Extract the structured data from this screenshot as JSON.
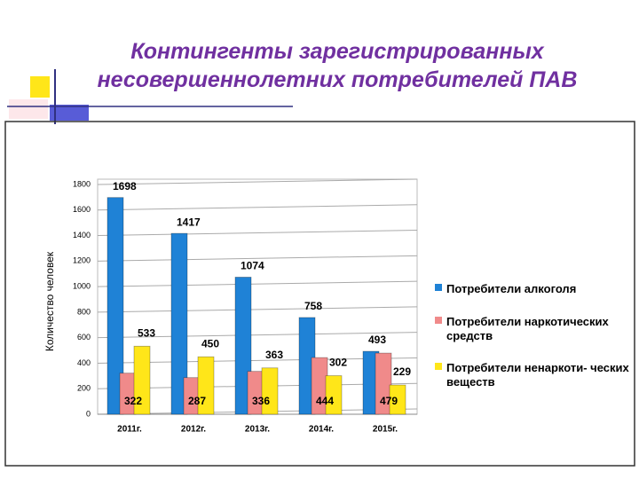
{
  "chart_data": {
    "type": "bar",
    "title": "Контингенты  зарегистрированных несовершеннолетних потребителей ПАВ",
    "y_label": "Количество человек",
    "categories": [
      "2011г.",
      "2012г.",
      "2013г.",
      "2014г.",
      "2015г."
    ],
    "series": [
      {
        "name": "Потребители алкоголя",
        "color": "#1f82d6",
        "values": [
          1698,
          1417,
          1074,
          758,
          493
        ]
      },
      {
        "name": "Потребители наркотических средств",
        "color": "#f08a8a",
        "values": [
          322,
          287,
          336,
          444,
          479
        ]
      },
      {
        "name": "Потребители ненаркоти- ческих веществ",
        "color": "#ffe619",
        "values": [
          533,
          450,
          363,
          302,
          229
        ]
      }
    ],
    "ylim": [
      0,
      1800
    ],
    "yticks": [
      0,
      200,
      400,
      600,
      800,
      1000,
      1200,
      1400,
      1600,
      1800
    ],
    "grid": true,
    "legend": "right"
  }
}
